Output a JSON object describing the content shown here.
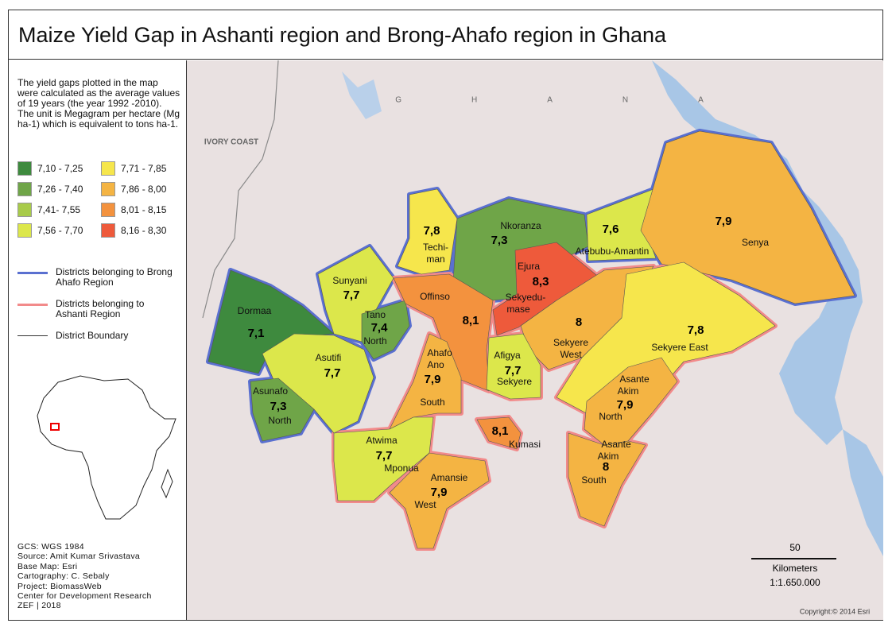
{
  "title": "Maize Yield Gap in Ashanti region and Brong-Ahafo region in Ghana",
  "legend": {
    "description": "The yield gaps plotted in the map were calculated as the average values of 19 years (the year 1992 -2010). The unit is Megagram per hectare (Mg ha-1) which is equivalent to tons ha-1.",
    "classes": [
      {
        "label": "7,10 - 7,25",
        "color": "#3e8a3e"
      },
      {
        "label": "7,26 - 7,40",
        "color": "#6fa548"
      },
      {
        "label": "7,41- 7,55",
        "color": "#a8cb4a"
      },
      {
        "label": "7,56 - 7,70",
        "color": "#dce74b"
      },
      {
        "label": "7,71 - 7,85",
        "color": "#f6e64c"
      },
      {
        "label": "7,86 - 8,00",
        "color": "#f4b443"
      },
      {
        "label": "8,01 - 8,15",
        "color": "#f3923e"
      },
      {
        "label": "8,16 - 8,30",
        "color": "#ee5a3b"
      }
    ],
    "lines": [
      {
        "label": "Districts belonging to Brong Ahafo Region",
        "color": "#5a70d0"
      },
      {
        "label": "Districts belonging to Ashanti Region",
        "color": "#f28a8a"
      },
      {
        "label": "District Boundary",
        "color": "#333333"
      }
    ]
  },
  "credits": [
    "GCS: WGS 1984",
    "Source: Amit Kumar Srivastava",
    "Base Map: Esri",
    "Cartography: C. Sebaly",
    "Project: BiomassWeb",
    "Center for Development Research",
    "ZEF | 2018"
  ],
  "map": {
    "country": "GHANA",
    "neighbor": "IVORY COAST",
    "districts": [
      {
        "labels": [
          "Dormaa"
        ],
        "value": "7,1",
        "color": "#3e8a3e",
        "border": "#5a70d0"
      },
      {
        "labels": [
          "Sunyani"
        ],
        "value": "7,7",
        "color": "#dce74b",
        "border": "#5a70d0"
      },
      {
        "labels": [
          "Tano",
          "North"
        ],
        "value": "7,4",
        "color": "#6fa548",
        "border": "#5a70d0"
      },
      {
        "labels": [
          "Asutifi"
        ],
        "value": "7,7",
        "color": "#dce74b",
        "border": "#5a70d0"
      },
      {
        "labels": [
          "Asunafo",
          "North"
        ],
        "value": "7,3",
        "color": "#6fa548",
        "border": "#5a70d0"
      },
      {
        "labels": [
          "Techi-",
          "man"
        ],
        "value": "7,8",
        "color": "#f6e64c",
        "border": "#5a70d0"
      },
      {
        "labels": [
          "Nkoranza"
        ],
        "value": "7,3",
        "color": "#6fa548",
        "border": "#5a70d0"
      },
      {
        "labels": [
          "Atebubu-Amantin"
        ],
        "value": "7,6",
        "color": "#dce74b",
        "border": "#5a70d0"
      },
      {
        "labels": [
          "Senya"
        ],
        "value": "7,9",
        "color": "#f4b443",
        "border": "#5a70d0"
      },
      {
        "labels": [
          "Offinso"
        ],
        "value": "8,1",
        "color": "#f3923e",
        "border": "#f28a8a"
      },
      {
        "labels": [
          "Ejura",
          "Sekyedu-",
          "mase"
        ],
        "value": "8,3",
        "color": "#ee5a3b",
        "border": "#f28a8a"
      },
      {
        "labels": [
          "Sekyere",
          "West"
        ],
        "value": "8",
        "color": "#f4b443",
        "border": "#f28a8a"
      },
      {
        "labels": [
          "Sekyere East"
        ],
        "value": "7,8",
        "color": "#f6e64c",
        "border": "#f28a8a"
      },
      {
        "labels": [
          "Afigya",
          "Sekyere"
        ],
        "value": "7,7",
        "color": "#dce74b",
        "border": "#f28a8a"
      },
      {
        "labels": [
          "Ahafo",
          "Ano",
          "South"
        ],
        "value": "7,9",
        "color": "#f4b443",
        "border": "#f28a8a"
      },
      {
        "labels": [
          "Atwima",
          "Mponua"
        ],
        "value": "7,7",
        "color": "#dce74b",
        "border": "#f28a8a"
      },
      {
        "labels": [
          "Amansie",
          "West"
        ],
        "value": "7,9",
        "color": "#f4b443",
        "border": "#f28a8a"
      },
      {
        "labels": [
          "Kumasi"
        ],
        "value": "8,1",
        "color": "#f3923e",
        "border": "#f28a8a"
      },
      {
        "labels": [
          "Asante",
          "Akim",
          "North"
        ],
        "value": "7,9",
        "color": "#f4b443",
        "border": "#f28a8a"
      },
      {
        "labels": [
          "Asante",
          "Akim",
          "South"
        ],
        "value": "8",
        "color": "#f4b443",
        "border": "#f28a8a"
      }
    ],
    "scale": {
      "distance": "50",
      "unit": "Kilometers",
      "ratio": "1:1.650.000"
    },
    "copyright": "Copyright:© 2014 Esri"
  }
}
